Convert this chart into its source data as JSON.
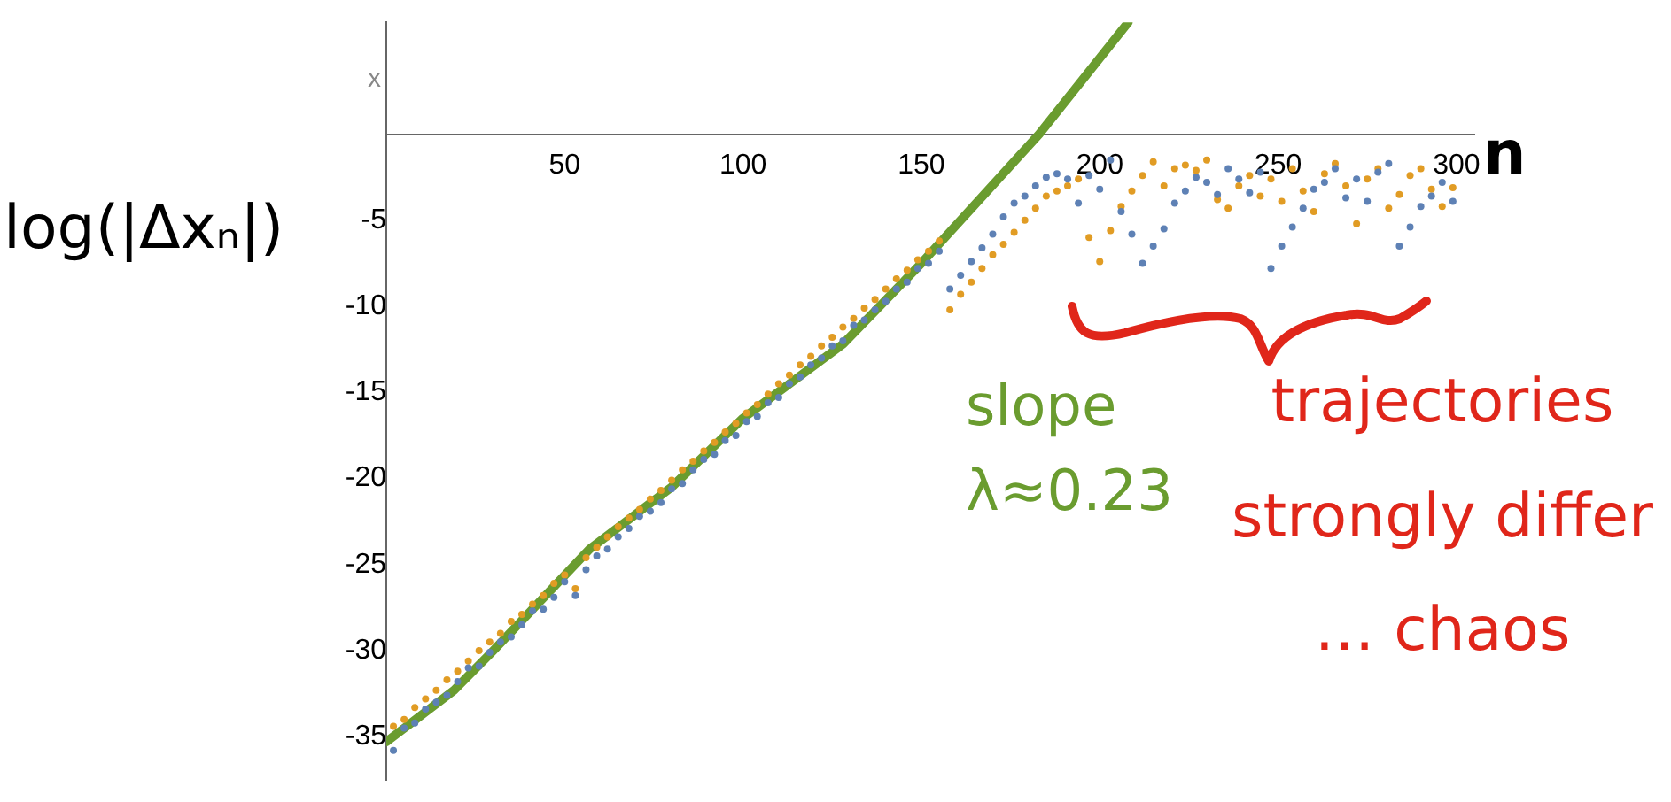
{
  "chart_data": {
    "type": "scatter",
    "xlabel": "n",
    "ylabel": "x",
    "xlim": [
      0,
      305
    ],
    "ylim": [
      -37.5,
      6.5
    ],
    "xticks": [
      50,
      100,
      150,
      200,
      250,
      300
    ],
    "yticks": [
      -35,
      -30,
      -25,
      -20,
      -15,
      -10,
      -5
    ],
    "grid": false,
    "legend": false,
    "marker": "circle",
    "annotations": [
      "log(|Δxₙ|)",
      "slope λ≈0.23",
      "trajectories strongly differ … chaos"
    ],
    "series": [
      {
        "color": "#5e81b5",
        "x": [
          2,
          5,
          8,
          11,
          14,
          17,
          20,
          23,
          26,
          29,
          32,
          35,
          38,
          41,
          44,
          47,
          50,
          53,
          56,
          59,
          62,
          65,
          68,
          71,
          74,
          77,
          80,
          83,
          86,
          89,
          92,
          95,
          98,
          101,
          104,
          107,
          110,
          113,
          116,
          119,
          122,
          125,
          128,
          131,
          134,
          137,
          140,
          143,
          146,
          149,
          152,
          155,
          158,
          161,
          164,
          167,
          170,
          173,
          176,
          179,
          182,
          185,
          188,
          191,
          194,
          197,
          200,
          203,
          206,
          209,
          212,
          215,
          218,
          221,
          224,
          227,
          230,
          233,
          236,
          239,
          242,
          245,
          248,
          251,
          254,
          257,
          260,
          263,
          266,
          269,
          272,
          275,
          278,
          281,
          284,
          287,
          290,
          293,
          296,
          299
        ],
        "values": [
          -35.8,
          -34.5,
          -34.2,
          -33.4,
          -33.0,
          -32.6,
          -31.8,
          -31.0,
          -30.9,
          -30.1,
          -29.5,
          -29.2,
          -28.5,
          -27.7,
          -27.6,
          -26.9,
          -26.0,
          -26.8,
          -25.3,
          -24.5,
          -24.1,
          -23.4,
          -22.9,
          -22.2,
          -21.9,
          -21.4,
          -20.6,
          -20.3,
          -19.5,
          -18.9,
          -18.6,
          -17.8,
          -17.5,
          -16.7,
          -16.4,
          -15.6,
          -15.3,
          -14.5,
          -14.1,
          -13.4,
          -13.0,
          -12.3,
          -12.0,
          -11.1,
          -10.8,
          -10.2,
          -9.7,
          -9.0,
          -8.6,
          -7.8,
          -7.5,
          -6.8,
          -9.0,
          -8.2,
          -7.4,
          -6.6,
          -5.8,
          -4.8,
          -4.0,
          -3.6,
          -3.0,
          -2.5,
          -2.3,
          -2.6,
          -4.0,
          -2.4,
          -3.2,
          -1.5,
          -4.5,
          -5.8,
          -7.5,
          -6.5,
          -5.5,
          -4.0,
          -3.3,
          -2.5,
          -2.8,
          -3.5,
          -2.0,
          -2.6,
          -3.4,
          -2.2,
          -7.8,
          -6.5,
          -5.4,
          -4.3,
          -3.2,
          -2.8,
          -2.0,
          -3.7,
          -2.6,
          -3.9,
          -2.2,
          -1.7,
          -6.5,
          -5.4,
          -4.2,
          -3.6,
          -2.8,
          -3.9
        ]
      },
      {
        "color": "#e19c24",
        "x": [
          2,
          5,
          8,
          11,
          14,
          17,
          20,
          23,
          26,
          29,
          32,
          35,
          38,
          41,
          44,
          47,
          50,
          53,
          56,
          59,
          62,
          65,
          68,
          71,
          74,
          77,
          80,
          83,
          86,
          89,
          92,
          95,
          98,
          101,
          104,
          107,
          110,
          113,
          116,
          119,
          122,
          125,
          128,
          131,
          134,
          137,
          140,
          143,
          146,
          149,
          152,
          155,
          158,
          161,
          164,
          167,
          170,
          173,
          176,
          179,
          182,
          185,
          188,
          191,
          194,
          197,
          200,
          203,
          206,
          209,
          212,
          215,
          218,
          221,
          224,
          227,
          230,
          233,
          236,
          239,
          242,
          245,
          248,
          251,
          254,
          257,
          260,
          263,
          266,
          269,
          272,
          275,
          278,
          281,
          284,
          287,
          290,
          293,
          296,
          299
        ],
        "values": [
          -34.4,
          -34.0,
          -33.3,
          -32.8,
          -32.3,
          -31.7,
          -31.2,
          -30.6,
          -30.0,
          -29.5,
          -29.0,
          -28.3,
          -27.9,
          -27.3,
          -26.8,
          -26.1,
          -25.6,
          -26.4,
          -24.6,
          -24.0,
          -23.4,
          -22.8,
          -22.3,
          -21.8,
          -21.2,
          -20.7,
          -20.1,
          -19.5,
          -19.0,
          -18.4,
          -17.9,
          -17.3,
          -16.8,
          -16.2,
          -15.7,
          -15.1,
          -14.5,
          -14.0,
          -13.4,
          -12.9,
          -12.3,
          -11.8,
          -11.2,
          -10.7,
          -10.1,
          -9.6,
          -9.0,
          -8.4,
          -7.9,
          -7.3,
          -6.8,
          -6.2,
          -10.2,
          -9.3,
          -8.6,
          -7.8,
          -7.0,
          -6.4,
          -5.7,
          -5.0,
          -4.3,
          -3.6,
          -3.3,
          -3.0,
          -2.6,
          -6.0,
          -7.4,
          -5.6,
          -4.2,
          -3.3,
          -2.4,
          -1.6,
          -3.0,
          -2.0,
          -1.8,
          -2.1,
          -1.5,
          -3.8,
          -4.3,
          -3.0,
          -2.4,
          -3.6,
          -2.6,
          -3.9,
          -2.0,
          -3.3,
          -4.5,
          -2.3,
          -1.7,
          -3.0,
          -5.2,
          -2.6,
          -2.0,
          -4.3,
          -3.5,
          -2.4,
          -2.0,
          -3.2,
          -4.2,
          -3.1
        ]
      },
      {
        "type": "line",
        "marker": "none",
        "color": "#6a9c2f",
        "x": [
          0,
          19,
          30,
          57,
          80,
          100,
          128,
          150,
          183,
          208
        ],
        "values": [
          -35.3,
          -32.3,
          -30.0,
          -24.1,
          -20.5,
          -16.5,
          -12.2,
          -7.5,
          0,
          6.5
        ]
      }
    ]
  }
}
